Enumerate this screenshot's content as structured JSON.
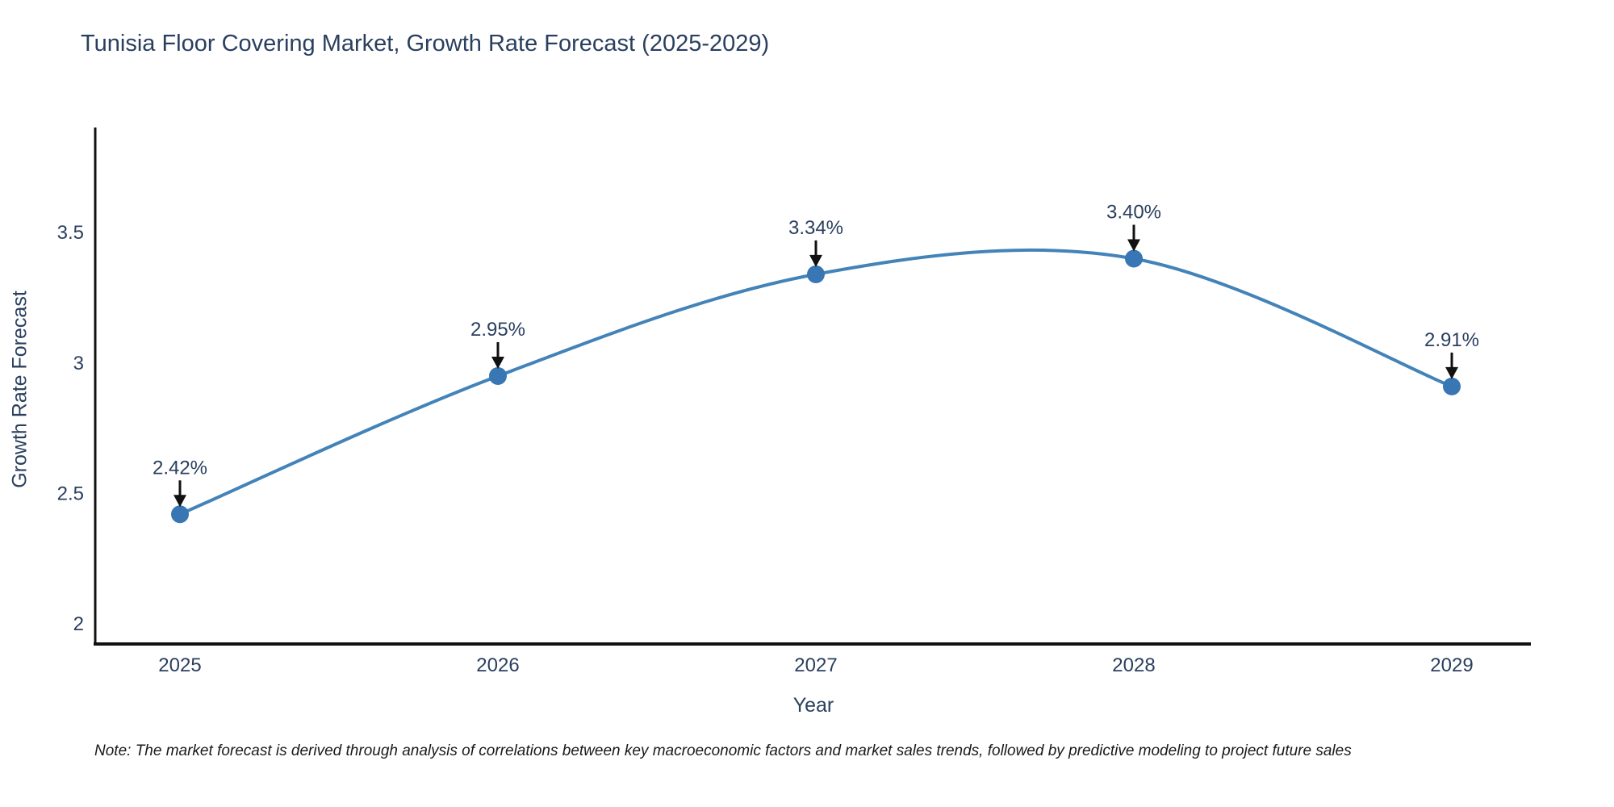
{
  "chart_data": {
    "type": "line",
    "title": "Tunisia Floor Covering Market, Growth Rate Forecast (2025-2029)",
    "xlabel": "Year",
    "ylabel": "Growth Rate Forecast",
    "x": [
      2025,
      2026,
      2027,
      2028,
      2029
    ],
    "series": [
      {
        "name": "Growth Rate Forecast",
        "values": [
          2.42,
          2.95,
          3.34,
          3.4,
          2.91
        ],
        "point_labels": [
          "2.42%",
          "2.95%",
          "3.34%",
          "3.40%",
          "2.91%"
        ]
      }
    ],
    "x_tick_labels": [
      "2025",
      "2026",
      "2027",
      "2028",
      "2029"
    ],
    "y_ticks": [
      2,
      2.5,
      3,
      3.5
    ],
    "y_tick_labels": [
      "2",
      "2.5",
      "3",
      "3.5"
    ],
    "ylim": [
      1.92,
      3.93
    ],
    "xlim": [
      2024.73,
      2029.25
    ],
    "grid": false,
    "legend": "none",
    "line_shape": "spline",
    "annotations_style": "value labels with downward arrows above each point",
    "colors": {
      "line": "#4383b8",
      "marker": "#3876b4",
      "axis": "#111111",
      "text": "#2a3f5f",
      "annotation_text": "#2a3f5f",
      "arrow": "#111111",
      "background": "#ffffff"
    }
  },
  "note": {
    "text": "Note: The market forecast is derived through analysis of correlations between key macroeconomic factors and market sales trends, followed by predictive modeling to project future sales"
  }
}
